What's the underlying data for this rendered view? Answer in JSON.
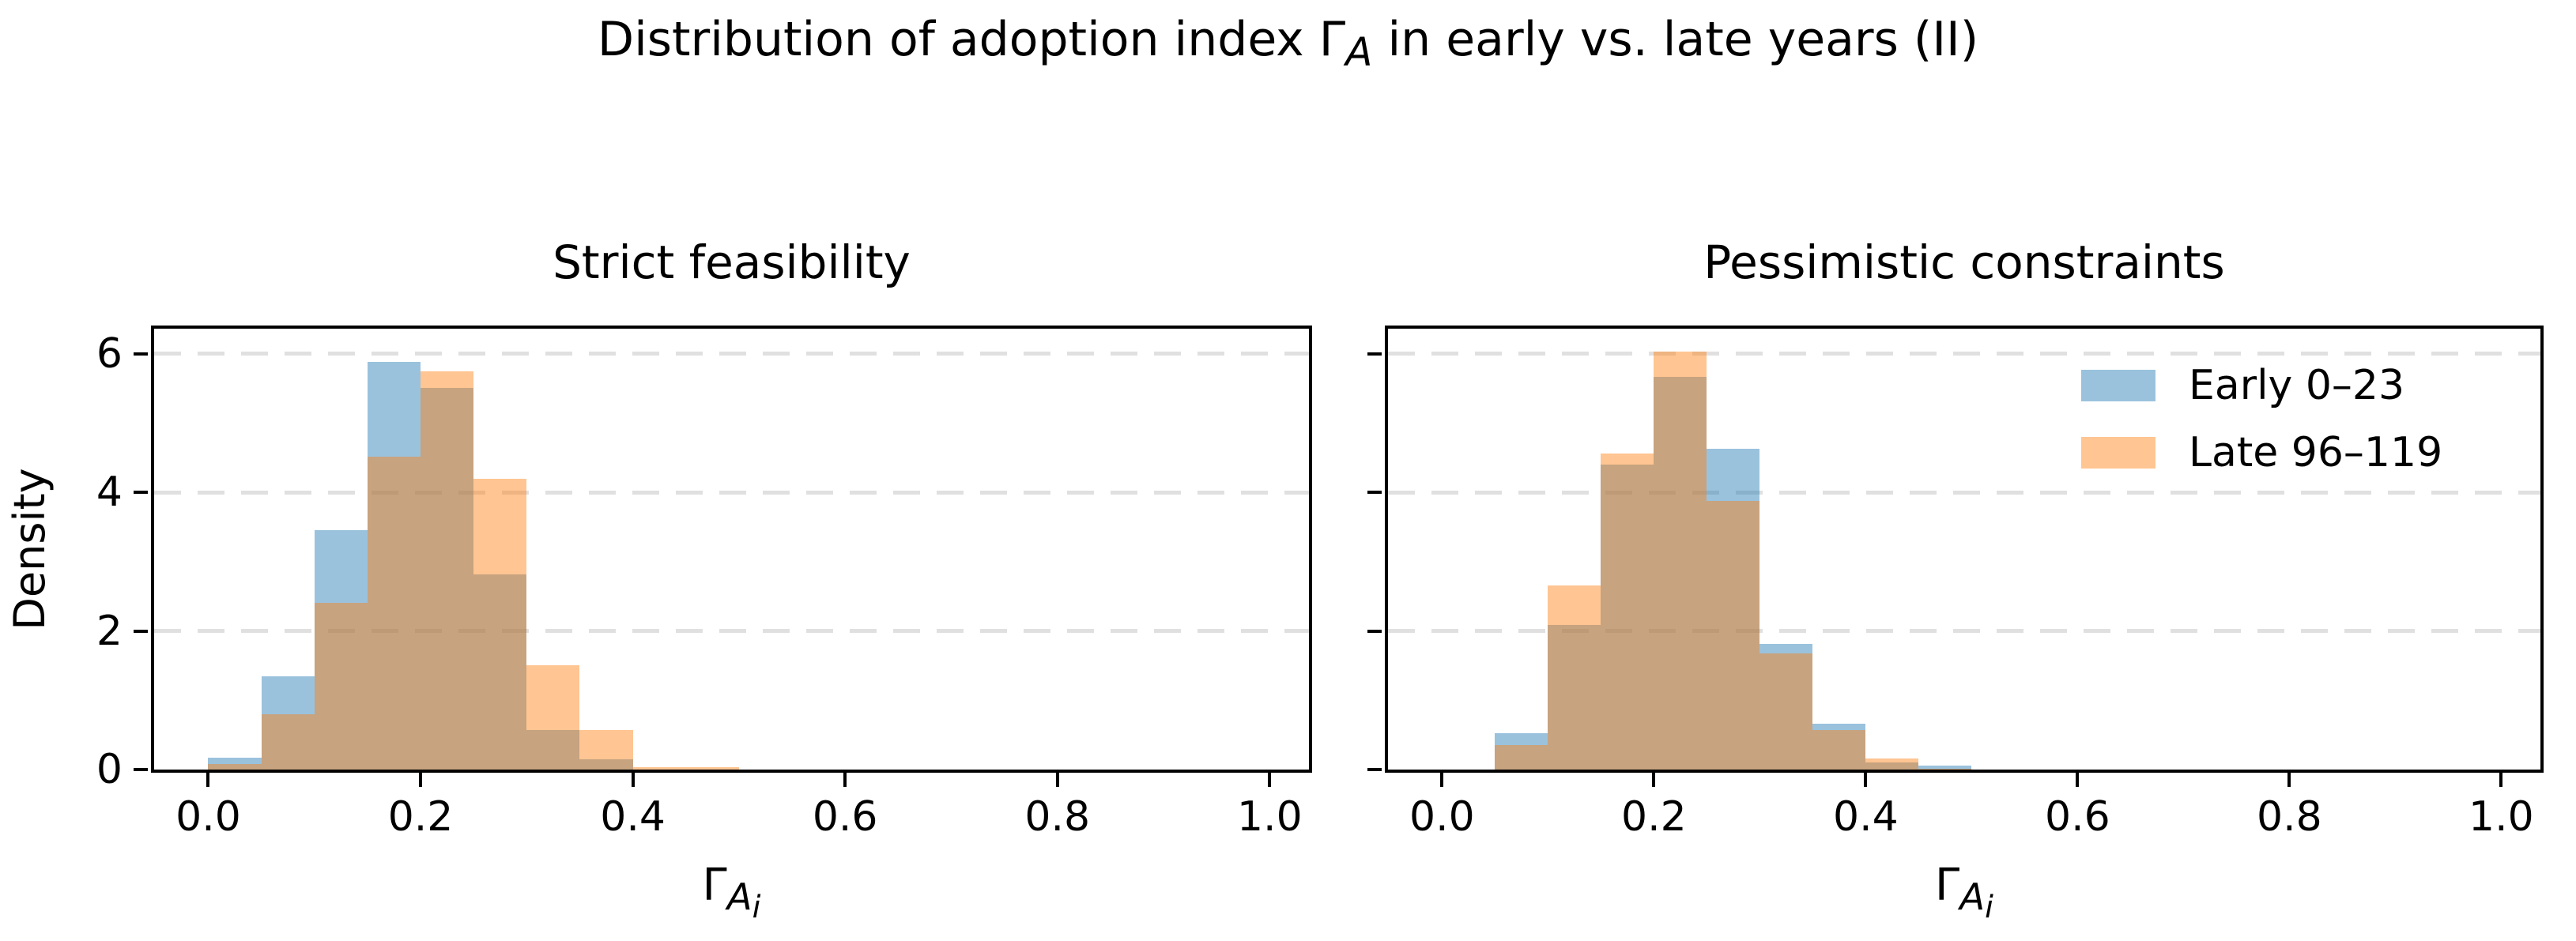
{
  "figure": {
    "background": "#ffffff"
  },
  "chart_data": {
    "type": "bar",
    "subtype": "overlapping-histogram-pair",
    "title_parts": {
      "pre": "Distribution of adoption index ",
      "symbol": "Γ",
      "symbol_sub": "A",
      "post": " in early vs. late years (II)"
    },
    "axes": {
      "xlim": [
        -0.051,
        1.037
      ],
      "ylim": [
        0,
        6.36
      ],
      "xticks": [
        0.0,
        0.2,
        0.4,
        0.6,
        0.8,
        1.0
      ],
      "xtick_labels": [
        "0.0",
        "0.2",
        "0.4",
        "0.6",
        "0.8",
        "1.0"
      ],
      "yticks": [
        0,
        2,
        4,
        6
      ],
      "ytick_labels": [
        "0",
        "2",
        "4",
        "6"
      ],
      "grid_yticks": [
        2,
        4,
        6
      ],
      "grid_on": true,
      "ylabel": "Density",
      "xlabel_parts": {
        "symbol": "Γ",
        "sub": "A",
        "subsub": "i"
      }
    },
    "colors": {
      "early": "#1f77b4",
      "late": "#ff7f0e",
      "fill_alpha": 0.45,
      "grid": "#e0e0e0",
      "spine": "#000000"
    },
    "legend": {
      "location": "upper right of second panel",
      "entries": [
        {
          "key": "early",
          "name": "Early 0–23"
        },
        {
          "key": "late",
          "name": "Late 96–119"
        }
      ]
    },
    "bin_edges": [
      0.0,
      0.05,
      0.1,
      0.15,
      0.2,
      0.25,
      0.3,
      0.35,
      0.4,
      0.45,
      0.5
    ],
    "panels": [
      {
        "title": "Strict feasibility",
        "show_ytick_labels": true,
        "series": [
          {
            "key": "early",
            "name": "Early 0–23",
            "values": [
              0.17,
              1.35,
              3.45,
              5.88,
              5.51,
              2.81,
              0.57,
              0.15,
              0.0,
              0.0
            ]
          },
          {
            "key": "late",
            "name": "Late 96–119",
            "values": [
              0.08,
              0.8,
              2.4,
              4.51,
              5.75,
              4.2,
              1.51,
              0.57,
              0.04,
              0.04
            ]
          }
        ]
      },
      {
        "title": "Pessimistic constraints",
        "show_ytick_labels": false,
        "series": [
          {
            "key": "early",
            "name": "Early 0–23",
            "values": [
              0.0,
              0.52,
              2.09,
              4.4,
              5.67,
              4.63,
              1.81,
              0.66,
              0.1,
              0.06
            ]
          },
          {
            "key": "late",
            "name": "Late 96–119",
            "values": [
              0.0,
              0.35,
              2.66,
              4.56,
              6.03,
              3.87,
              1.67,
              0.57,
              0.16,
              0.01
            ]
          }
        ]
      }
    ]
  }
}
